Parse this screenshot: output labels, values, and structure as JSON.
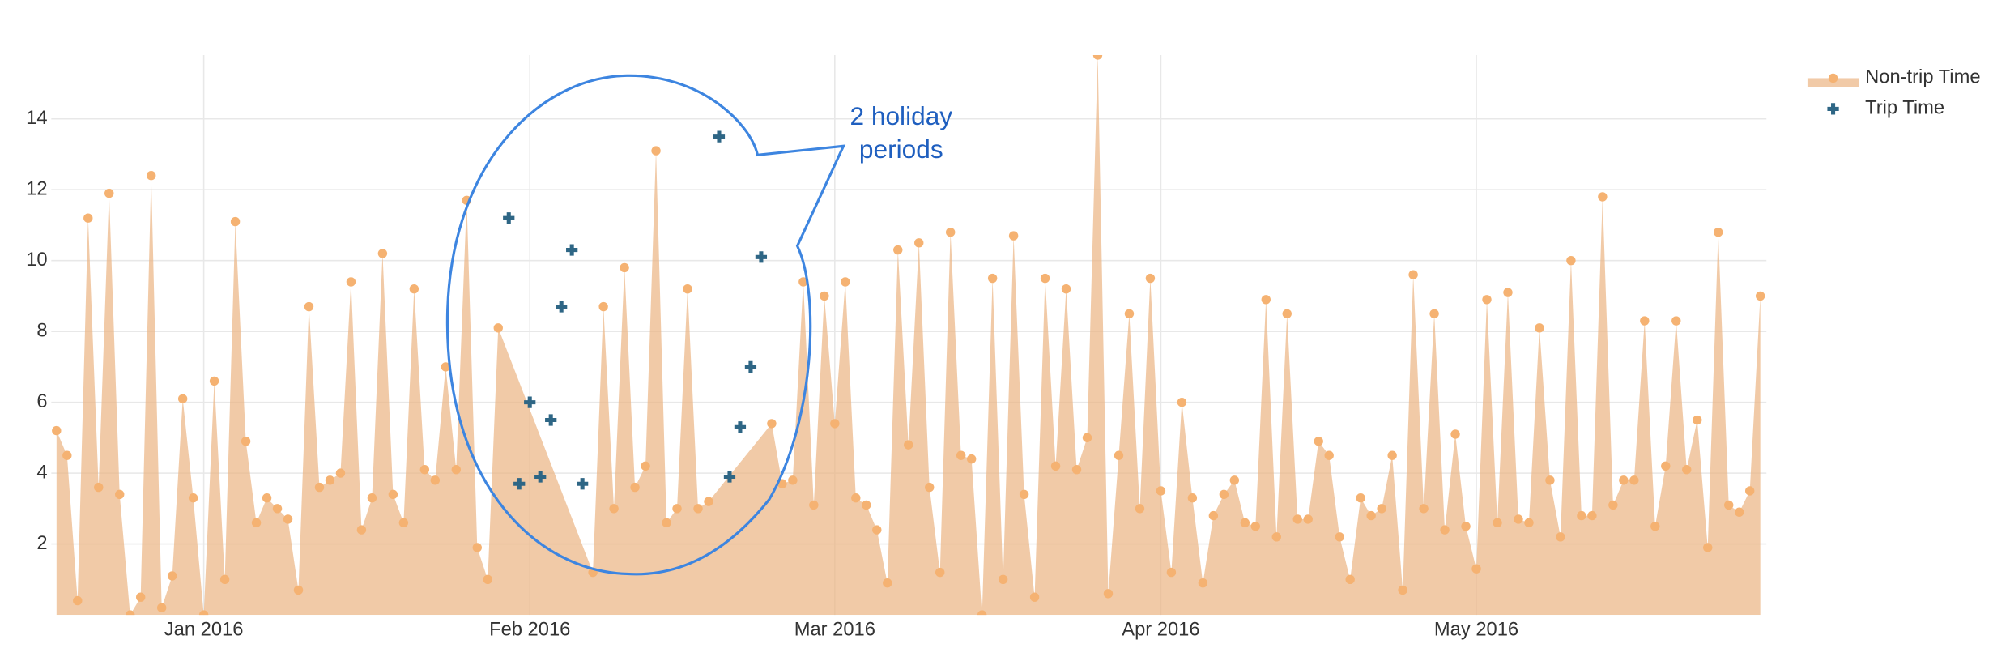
{
  "chart_data": {
    "type": "area",
    "series": [
      {
        "name": "Non-trip Time",
        "type": "area",
        "color": "#f5b272",
        "fill": "rgba(235,180,130,0.7)",
        "x": [
          "2015-12-18",
          "2015-12-19",
          "2015-12-20",
          "2015-12-21",
          "2015-12-22",
          "2015-12-23",
          "2015-12-24",
          "2015-12-25",
          "2015-12-26",
          "2015-12-27",
          "2015-12-28",
          "2015-12-29",
          "2015-12-30",
          "2015-12-31",
          "2016-01-01",
          "2016-01-02",
          "2016-01-03",
          "2016-01-04",
          "2016-01-05",
          "2016-01-06",
          "2016-01-07",
          "2016-01-08",
          "2016-01-09",
          "2016-01-10",
          "2016-01-11",
          "2016-01-12",
          "2016-01-13",
          "2016-01-14",
          "2016-01-15",
          "2016-01-16",
          "2016-01-17",
          "2016-01-18",
          "2016-01-19",
          "2016-01-20",
          "2016-01-21",
          "2016-01-22",
          "2016-01-23",
          "2016-01-24",
          "2016-01-25",
          "2016-01-26",
          "2016-01-27",
          "2016-01-28",
          "2016-01-29",
          "2016-02-07",
          "2016-02-08",
          "2016-02-09",
          "2016-02-10",
          "2016-02-11",
          "2016-02-12",
          "2016-02-13",
          "2016-02-14",
          "2016-02-15",
          "2016-02-16",
          "2016-02-17",
          "2016-02-18",
          "2016-02-24",
          "2016-02-25",
          "2016-02-26",
          "2016-02-27",
          "2016-02-28",
          "2016-02-29",
          "2016-03-01",
          "2016-03-02",
          "2016-03-03",
          "2016-03-04",
          "2016-03-05",
          "2016-03-06",
          "2016-03-07",
          "2016-03-08",
          "2016-03-09",
          "2016-03-10",
          "2016-03-11",
          "2016-03-12",
          "2016-03-13",
          "2016-03-14",
          "2016-03-15",
          "2016-03-16",
          "2016-03-17",
          "2016-03-18",
          "2016-03-19",
          "2016-03-20",
          "2016-03-21",
          "2016-03-22",
          "2016-03-23",
          "2016-03-24",
          "2016-03-25",
          "2016-03-26",
          "2016-03-27",
          "2016-03-28",
          "2016-03-29",
          "2016-03-30",
          "2016-03-31",
          "2016-04-01",
          "2016-04-02",
          "2016-04-03",
          "2016-04-04",
          "2016-04-05",
          "2016-04-06",
          "2016-04-07",
          "2016-04-08",
          "2016-04-09",
          "2016-04-10",
          "2016-04-11",
          "2016-04-12",
          "2016-04-13",
          "2016-04-14",
          "2016-04-15",
          "2016-04-16",
          "2016-04-17",
          "2016-04-18",
          "2016-04-19",
          "2016-04-20",
          "2016-04-21",
          "2016-04-22",
          "2016-04-23",
          "2016-04-24",
          "2016-04-25",
          "2016-04-26",
          "2016-04-27",
          "2016-04-28",
          "2016-04-29",
          "2016-04-30",
          "2016-05-01",
          "2016-05-02",
          "2016-05-03",
          "2016-05-04",
          "2016-05-05",
          "2016-05-06",
          "2016-05-07",
          "2016-05-08",
          "2016-05-09",
          "2016-05-10",
          "2016-05-11",
          "2016-05-12",
          "2016-05-13",
          "2016-05-14",
          "2016-05-15",
          "2016-05-16",
          "2016-05-17",
          "2016-05-18",
          "2016-05-19",
          "2016-05-20",
          "2016-05-21",
          "2016-05-22",
          "2016-05-23",
          "2016-05-24",
          "2016-05-25",
          "2016-05-26",
          "2016-05-27",
          "2016-05-28"
        ],
        "values": [
          5.2,
          4.5,
          0.4,
          11.2,
          3.6,
          11.9,
          3.4,
          0,
          0.5,
          12.4,
          0.2,
          1.1,
          6.1,
          3.3,
          0,
          6.6,
          1,
          11.1,
          4.9,
          2.6,
          3.3,
          3.0,
          2.7,
          0.7,
          8.7,
          3.6,
          3.8,
          4.0,
          9.4,
          2.4,
          3.3,
          10.2,
          3.4,
          2.6,
          9.2,
          4.1,
          3.8,
          7.0,
          4.1,
          11.7,
          1.9,
          1.0,
          8.1,
          1.2,
          8.7,
          3.0,
          9.8,
          3.6,
          4.2,
          13.1,
          2.6,
          3.0,
          9.2,
          3.0,
          3.2,
          5.4,
          3.7,
          3.8,
          9.4,
          3.1,
          9.0,
          5.4,
          9.4,
          3.3,
          3.1,
          2.4,
          0.9,
          10.3,
          4.8,
          10.5,
          3.6,
          1.2,
          10.8,
          4.5,
          4.4,
          0,
          9.5,
          1.0,
          10.7,
          3.4,
          0.5,
          9.5,
          4.2,
          9.2,
          4.1,
          5.0,
          15.8,
          0.6,
          4.5,
          8.5,
          3.0,
          9.5,
          3.5,
          1.2,
          6.0,
          3.3,
          0.9,
          2.8,
          3.4,
          3.8,
          2.6,
          2.5,
          8.9,
          2.2,
          8.5,
          2.7,
          2.7,
          4.9,
          4.5,
          2.2,
          1.0,
          3.3,
          2.8,
          3.0,
          4.5,
          0.7,
          9.6,
          3.0,
          8.5,
          2.4,
          5.1,
          2.5,
          1.3,
          8.9,
          2.6,
          9.1,
          2.7,
          2.6,
          8.1,
          3.8,
          2.2,
          10.0,
          2.8,
          2.8,
          11.8,
          3.1,
          3.8,
          3.8,
          8.3,
          2.5,
          4.2,
          8.3,
          4.1,
          5.5,
          1.9,
          10.8,
          3.1,
          2.9,
          3.5,
          9.0
        ]
      },
      {
        "name": "Trip Time",
        "type": "scatter",
        "color": "#2e6685",
        "x": [
          "2016-01-30",
          "2016-01-31",
          "2016-02-01",
          "2016-02-02",
          "2016-02-03",
          "2016-02-04",
          "2016-02-05",
          "2016-02-06",
          "2016-02-19",
          "2016-02-20",
          "2016-02-21",
          "2016-02-22",
          "2016-02-23"
        ],
        "values": [
          11.2,
          3.7,
          6.0,
          3.9,
          5.5,
          8.7,
          10.3,
          3.7,
          13.5,
          3.9,
          5.3,
          7.0,
          10.1
        ]
      }
    ],
    "xlim": [
      "2015-12-17T12:00",
      "2016-05-28T14:00"
    ],
    "xticks": [
      {
        "value": "2016-01-01",
        "label": "Jan 2016"
      },
      {
        "value": "2016-02-01",
        "label": "Feb 2016"
      },
      {
        "value": "2016-03-01",
        "label": "Mar 2016"
      },
      {
        "value": "2016-04-01",
        "label": "Apr 2016"
      },
      {
        "value": "2016-05-01",
        "label": "May 2016"
      }
    ],
    "ylim": [
      0,
      15.8
    ],
    "yticks": [
      2,
      4,
      6,
      8,
      10,
      12,
      14
    ],
    "grid": true,
    "legend": "top-right",
    "annotation": [
      "2 holiday",
      "periods"
    ],
    "annotation_color": "#1f5fbf"
  }
}
